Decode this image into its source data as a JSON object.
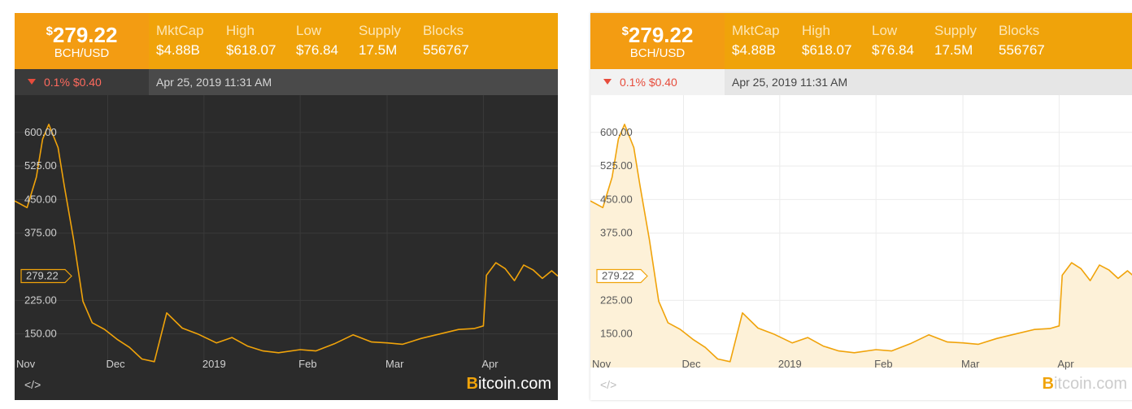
{
  "header": {
    "price_symbol": "$",
    "price": "279.22",
    "pair": "BCH/USD",
    "stats": [
      {
        "label": "MktCap",
        "value": "$4.88B"
      },
      {
        "label": "High",
        "value": "$618.07"
      },
      {
        "label": "Low",
        "value": "$76.84"
      },
      {
        "label": "Supply",
        "value": "17.5M"
      },
      {
        "label": "Blocks",
        "value": "556767"
      }
    ]
  },
  "change": {
    "percent": "0.1%",
    "amount": "$0.40"
  },
  "timestamp": "Apr 25, 2019 11:31 AM",
  "footer": {
    "embed_label": "</>",
    "brand_b": "B",
    "brand_rest": "itcoin.com"
  },
  "colors": {
    "accent": "#f0a30a",
    "price_box": "#f39c12",
    "down": "#e74c3c",
    "dark_bg": "#2b2b2b",
    "light_fill": "#fdf1d8"
  },
  "chart_data": {
    "type": "area",
    "x": [
      "2018-11-01",
      "2018-11-05",
      "2018-11-08",
      "2018-11-10",
      "2018-11-12",
      "2018-11-15",
      "2018-11-17",
      "2018-11-20",
      "2018-11-23",
      "2018-11-26",
      "2018-11-30",
      "2018-12-04",
      "2018-12-08",
      "2018-12-12",
      "2018-12-16",
      "2018-12-20",
      "2018-12-25",
      "2018-12-30",
      "2019-01-05",
      "2019-01-10",
      "2019-01-15",
      "2019-01-20",
      "2019-01-25",
      "2019-02-01",
      "2019-02-06",
      "2019-02-12",
      "2019-02-18",
      "2019-02-24",
      "2019-03-01",
      "2019-03-06",
      "2019-03-12",
      "2019-03-18",
      "2019-03-24",
      "2019-03-29",
      "2019-04-01",
      "2019-04-02",
      "2019-04-05",
      "2019-04-08",
      "2019-04-11",
      "2019-04-14",
      "2019-04-17",
      "2019-04-20",
      "2019-04-23",
      "2019-04-25"
    ],
    "y": [
      447,
      432,
      500,
      585,
      618,
      566,
      480,
      361,
      223,
      175,
      160,
      138,
      120,
      94,
      88,
      197,
      163,
      150,
      130,
      142,
      123,
      112,
      108,
      115,
      112,
      128,
      148,
      132,
      130,
      127,
      140,
      150,
      160,
      162,
      168,
      281,
      309,
      296,
      269,
      304,
      293,
      274,
      291,
      279.22
    ],
    "yticks": [
      "600.00",
      "525.00",
      "450.00",
      "375.00",
      "225.00",
      "150.00"
    ],
    "ytick_values": [
      600,
      525,
      450,
      375,
      225,
      150
    ],
    "xtick_labels": [
      "Nov",
      "Dec",
      "2019",
      "Feb",
      "Mar",
      "Apr"
    ],
    "xtick_dates": [
      "2018-11-01",
      "2018-12-01",
      "2019-01-01",
      "2019-02-01",
      "2019-03-01",
      "2019-04-01"
    ],
    "current_value_label": "279.22",
    "current_value": 279.22,
    "ylim": [
      75,
      665
    ],
    "xlim": [
      "2018-11-01",
      "2019-04-25"
    ],
    "grid": true
  }
}
